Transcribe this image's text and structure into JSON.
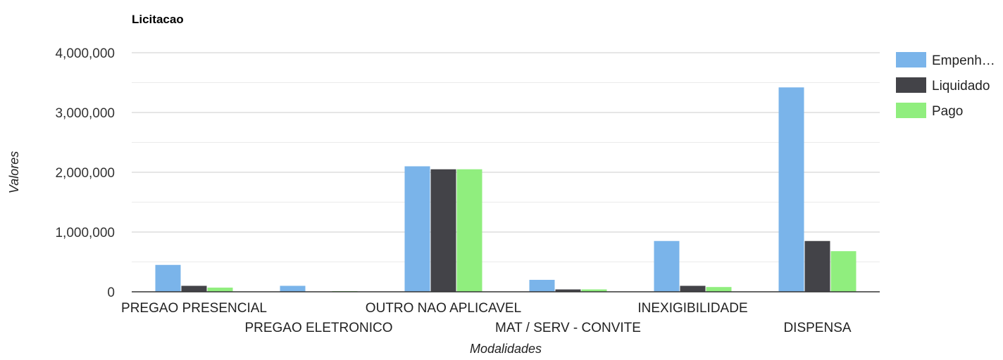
{
  "chart_data": {
    "type": "bar",
    "title": "Licitacao",
    "xlabel": "Modalidades",
    "ylabel": "Valores",
    "ylim": [
      0,
      4000000
    ],
    "yticks": [
      0,
      1000000,
      2000000,
      3000000,
      4000000
    ],
    "ytick_labels": [
      "0",
      "1,000,000",
      "2,000,000",
      "3,000,000",
      "4,000,000"
    ],
    "grid": true,
    "legend_position": "right",
    "categories": [
      "PREGAO PRESENCIAL",
      "PREGAO ELETRONICO",
      "OUTRO NAO APLICAVEL",
      "MAT / SERV - CONVITE",
      "INEXIGIBILIDADE",
      "DISPENSA"
    ],
    "series": [
      {
        "name": "Empenh…",
        "color": "#7ab4ea",
        "values": [
          450000,
          100000,
          2100000,
          200000,
          850000,
          3420000
        ]
      },
      {
        "name": "Liquidado",
        "color": "#434348",
        "values": [
          100000,
          0,
          2050000,
          40000,
          100000,
          850000
        ]
      },
      {
        "name": "Pago",
        "color": "#90ee7e",
        "values": [
          70000,
          10000,
          2050000,
          40000,
          80000,
          680000
        ]
      }
    ]
  }
}
